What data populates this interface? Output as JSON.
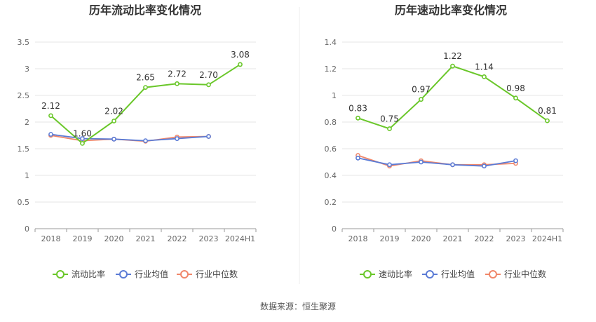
{
  "source_text": "数据来源：恒生聚源",
  "colors": {
    "main": "#6ac72a",
    "avg": "#5b7bd5",
    "median": "#f0876a"
  },
  "chart_data": [
    {
      "type": "line",
      "title": "历年流动比率变化情况",
      "categories": [
        "2018",
        "2019",
        "2020",
        "2021",
        "2022",
        "2023",
        "2024H1"
      ],
      "ylim": [
        0,
        3.5
      ],
      "yticks": [
        "0",
        "0.5",
        "1",
        "1.5",
        "2",
        "2.5",
        "3",
        "3.5"
      ],
      "grid": true,
      "legend_position": "bottom",
      "series": [
        {
          "name": "流动比率",
          "values": [
            2.12,
            1.6,
            2.02,
            2.65,
            2.72,
            2.7,
            3.08
          ],
          "labels": [
            "2.12",
            "1.60",
            "2.02",
            "2.65",
            "2.72",
            "2.70",
            "3.08"
          ]
        },
        {
          "name": "行业均值",
          "values": [
            1.77,
            1.69,
            1.68,
            1.65,
            1.69,
            1.73,
            null
          ]
        },
        {
          "name": "行业中位数",
          "values": [
            1.75,
            1.65,
            1.68,
            1.64,
            1.72,
            1.73,
            null
          ]
        }
      ]
    },
    {
      "type": "line",
      "title": "历年速动比率变化情况",
      "categories": [
        "2018",
        "2019",
        "2020",
        "2021",
        "2022",
        "2023",
        "2024H1"
      ],
      "ylim": [
        0,
        1.4
      ],
      "yticks": [
        "0",
        "0.2",
        "0.4",
        "0.6",
        "0.8",
        "1",
        "1.2",
        "1.4"
      ],
      "grid": true,
      "legend_position": "bottom",
      "series": [
        {
          "name": "速动比率",
          "values": [
            0.83,
            0.75,
            0.97,
            1.22,
            1.14,
            0.98,
            0.81
          ],
          "labels": [
            "0.83",
            "0.75",
            "0.97",
            "1.22",
            "1.14",
            "0.98",
            "0.81"
          ]
        },
        {
          "name": "行业均值",
          "values": [
            0.53,
            0.48,
            0.5,
            0.48,
            0.47,
            0.51,
            null
          ]
        },
        {
          "name": "行业中位数",
          "values": [
            0.55,
            0.47,
            0.51,
            0.48,
            0.48,
            0.49,
            null
          ]
        }
      ]
    }
  ]
}
